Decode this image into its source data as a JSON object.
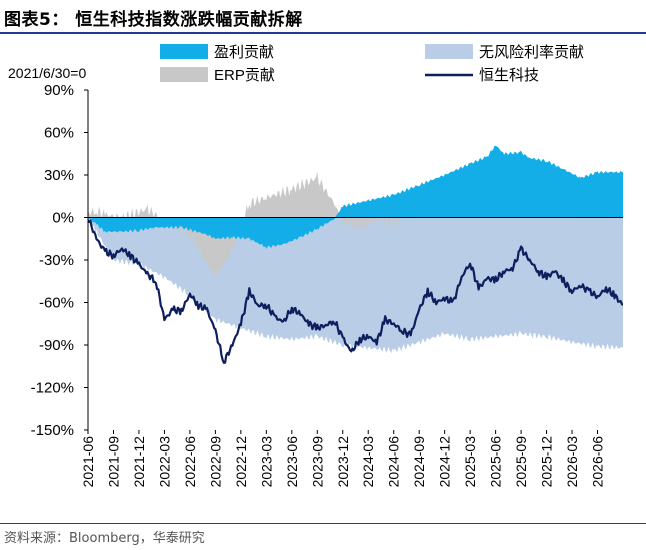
{
  "title": "图表5：  恒生科技指数涨跌幅贡献拆解",
  "source": "资料来源：Bloomberg，华泰研究",
  "chart_data": {
    "type": "area",
    "annotation": "2021/6/30=0",
    "ylim": [
      -150,
      90
    ],
    "y_ticks": [
      90,
      60,
      30,
      0,
      -30,
      -60,
      -90,
      -120,
      -150
    ],
    "y_tick_labels": [
      "90%",
      "60%",
      "30%",
      "0%",
      "-30%",
      "-60%",
      "-90%",
      "-120%",
      "-150%"
    ],
    "x_ticks": [
      "2021-06",
      "2021-09",
      "2021-12",
      "2022-03",
      "2022-06",
      "2022-09",
      "2022-12",
      "2023-03",
      "2023-06",
      "2023-09",
      "2023-12",
      "2024-03",
      "2024-06",
      "2024-09",
      "2024-12",
      "2025-03",
      "2025-06",
      "2025-09",
      "2025-12",
      "2026-03",
      "2026-06"
    ],
    "x_end": "2026-09",
    "legend": "top",
    "colors": {
      "profit": "#13aee8",
      "riskfree": "#b9cde6",
      "erp": "#c8c8c8",
      "index": "#0e1f5e"
    },
    "series": [
      {
        "name": "盈利贡献",
        "kind": "area",
        "points": [
          [
            "2021-06",
            0
          ],
          [
            "2021-07",
            -5
          ],
          [
            "2021-08",
            -10
          ],
          [
            "2021-10",
            -10
          ],
          [
            "2021-12",
            -9
          ],
          [
            "2022-02",
            -7
          ],
          [
            "2022-05",
            -7
          ],
          [
            "2022-08",
            -12
          ],
          [
            "2022-09",
            -15
          ],
          [
            "2022-11",
            -14
          ],
          [
            "2023-01",
            -15
          ],
          [
            "2023-02",
            -18
          ],
          [
            "2023-03",
            -21
          ],
          [
            "2023-05",
            -19
          ],
          [
            "2023-07",
            -14
          ],
          [
            "2023-09",
            -8
          ],
          [
            "2023-11",
            -1
          ],
          [
            "2023-12",
            8
          ],
          [
            "2024-03",
            12
          ],
          [
            "2024-06",
            16
          ],
          [
            "2024-09",
            23
          ],
          [
            "2024-12",
            30
          ],
          [
            "2025-03",
            38
          ],
          [
            "2025-05",
            43
          ],
          [
            "2025-06",
            51
          ],
          [
            "2025-07",
            45
          ],
          [
            "2025-09",
            46
          ],
          [
            "2025-10",
            42
          ],
          [
            "2025-12",
            40
          ],
          [
            "2026-02",
            34
          ],
          [
            "2026-04",
            28
          ],
          [
            "2026-06",
            32
          ],
          [
            "2026-09",
            32
          ]
        ]
      },
      {
        "name": "无风险利率贡献",
        "kind": "area",
        "points": [
          [
            "2021-06",
            -2
          ],
          [
            "2021-07",
            -10
          ],
          [
            "2021-09",
            -30
          ],
          [
            "2021-12",
            -33
          ],
          [
            "2022-03",
            -42
          ],
          [
            "2022-06",
            -55
          ],
          [
            "2022-09",
            -72
          ],
          [
            "2022-12",
            -78
          ],
          [
            "2023-03",
            -84
          ],
          [
            "2023-06",
            -86
          ],
          [
            "2023-09",
            -84
          ],
          [
            "2023-12",
            -90
          ],
          [
            "2024-03",
            -92
          ],
          [
            "2024-06",
            -94
          ],
          [
            "2024-09",
            -88
          ],
          [
            "2024-12",
            -82
          ],
          [
            "2025-03",
            -86
          ],
          [
            "2025-06",
            -84
          ],
          [
            "2025-09",
            -82
          ],
          [
            "2025-12",
            -84
          ],
          [
            "2026-03",
            -88
          ],
          [
            "2026-06",
            -91
          ],
          [
            "2026-09",
            -92
          ]
        ]
      },
      {
        "name": "ERP贡献",
        "kind": "area",
        "points": [
          [
            "2021-06",
            3
          ],
          [
            "2021-07",
            5
          ],
          [
            "2021-08",
            2
          ],
          [
            "2021-10",
            0
          ],
          [
            "2022-01",
            6
          ],
          [
            "2022-04",
            -6
          ],
          [
            "2022-06",
            -12
          ],
          [
            "2022-09",
            -42
          ],
          [
            "2022-11",
            -23
          ],
          [
            "2023-01",
            10
          ],
          [
            "2023-03",
            14
          ],
          [
            "2023-06",
            20
          ],
          [
            "2023-09",
            28
          ],
          [
            "2023-11",
            10
          ],
          [
            "2023-12",
            -3
          ],
          [
            "2024-02",
            -8
          ],
          [
            "2024-04",
            -2
          ],
          [
            "2024-06",
            -3
          ],
          [
            "2024-09",
            10
          ],
          [
            "2024-12",
            12
          ],
          [
            "2025-03",
            18
          ],
          [
            "2025-06",
            14
          ],
          [
            "2025-08",
            22
          ],
          [
            "2025-10",
            12
          ],
          [
            "2025-12",
            8
          ],
          [
            "2026-02",
            6
          ],
          [
            "2026-04",
            2
          ],
          [
            "2026-06",
            2
          ],
          [
            "2026-09",
            0
          ]
        ]
      },
      {
        "name": "恒生科技",
        "kind": "line",
        "points": [
          [
            "2021-06",
            0
          ],
          [
            "2021-07",
            -15
          ],
          [
            "2021-08",
            -24
          ],
          [
            "2021-09",
            -27
          ],
          [
            "2021-10",
            -22
          ],
          [
            "2021-11",
            -27
          ],
          [
            "2021-12",
            -33
          ],
          [
            "2022-01",
            -40
          ],
          [
            "2022-02",
            -45
          ],
          [
            "2022-03",
            -72
          ],
          [
            "2022-04",
            -65
          ],
          [
            "2022-05",
            -66
          ],
          [
            "2022-06",
            -54
          ],
          [
            "2022-07",
            -62
          ],
          [
            "2022-08",
            -65
          ],
          [
            "2022-09",
            -80
          ],
          [
            "2022-10",
            -102
          ],
          [
            "2022-11",
            -90
          ],
          [
            "2022-12",
            -75
          ],
          [
            "2023-01",
            -52
          ],
          [
            "2023-02",
            -62
          ],
          [
            "2023-03",
            -62
          ],
          [
            "2023-04",
            -70
          ],
          [
            "2023-05",
            -74
          ],
          [
            "2023-06",
            -64
          ],
          [
            "2023-07",
            -68
          ],
          [
            "2023-08",
            -75
          ],
          [
            "2023-09",
            -78
          ],
          [
            "2023-10",
            -76
          ],
          [
            "2023-11",
            -73
          ],
          [
            "2023-12",
            -85
          ],
          [
            "2024-01",
            -95
          ],
          [
            "2024-02",
            -86
          ],
          [
            "2024-03",
            -84
          ],
          [
            "2024-04",
            -88
          ],
          [
            "2024-05",
            -72
          ],
          [
            "2024-06",
            -75
          ],
          [
            "2024-07",
            -80
          ],
          [
            "2024-08",
            -83
          ],
          [
            "2024-09",
            -65
          ],
          [
            "2024-10",
            -52
          ],
          [
            "2024-11",
            -60
          ],
          [
            "2024-12",
            -57
          ],
          [
            "2025-01",
            -60
          ],
          [
            "2025-02",
            -42
          ],
          [
            "2025-03",
            -32
          ],
          [
            "2025-04",
            -50
          ],
          [
            "2025-05",
            -43
          ],
          [
            "2025-06",
            -44
          ],
          [
            "2025-07",
            -38
          ],
          [
            "2025-08",
            -36
          ],
          [
            "2025-09",
            -22
          ],
          [
            "2025-10",
            -30
          ],
          [
            "2025-11",
            -38
          ],
          [
            "2025-12",
            -42
          ],
          [
            "2026-01",
            -38
          ],
          [
            "2026-02",
            -45
          ],
          [
            "2026-03",
            -52
          ],
          [
            "2026-04",
            -48
          ],
          [
            "2026-05",
            -52
          ],
          [
            "2026-06",
            -56
          ],
          [
            "2026-07",
            -50
          ],
          [
            "2026-08",
            -55
          ],
          [
            "2026-09",
            -62
          ]
        ]
      }
    ]
  }
}
